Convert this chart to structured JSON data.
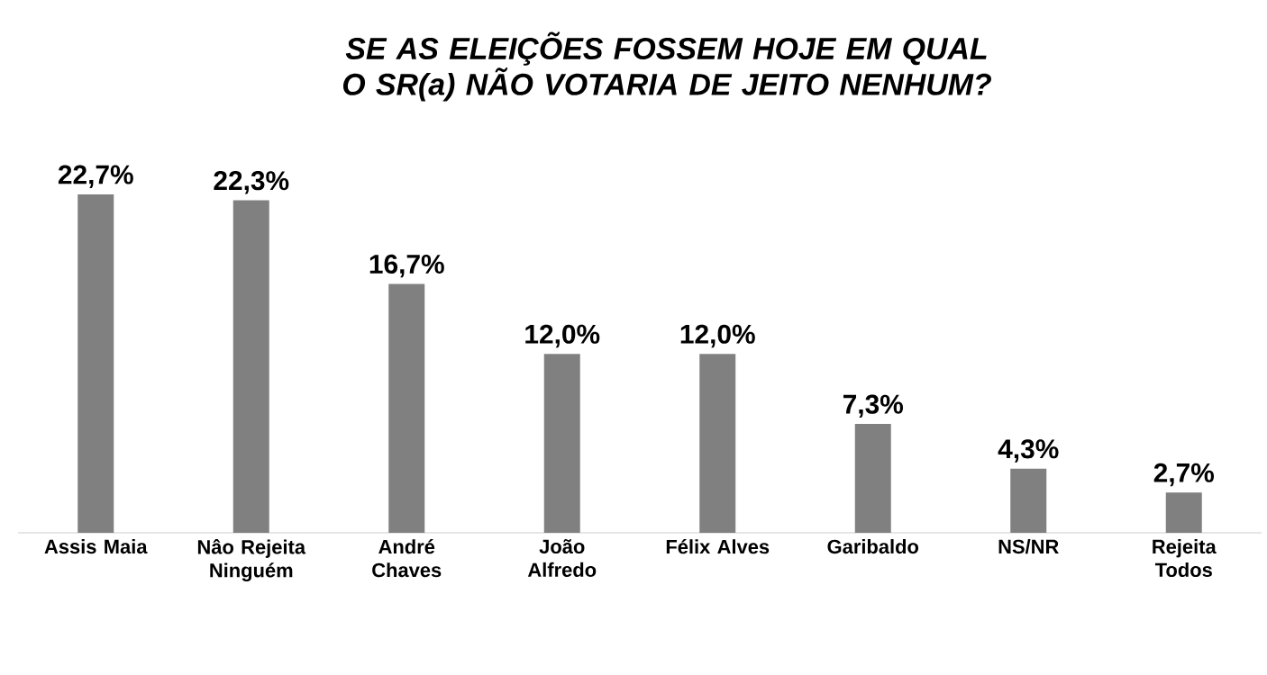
{
  "chart_data": {
    "type": "bar",
    "title": "SE AS ELEIÇÕES FOSSEM HOJE EM QUAL O SR(a) NÃO VOTARIA DE JEITO NENHUM?",
    "categories": [
      "Assis Maia",
      "Nâo Rejeita Ninguém",
      "André Chaves",
      "João Alfredo",
      "Félix Alves",
      "Garibaldo",
      "NS/NR",
      "Rejeita Todos"
    ],
    "values": [
      22.7,
      22.3,
      16.7,
      12.0,
      12.0,
      7.3,
      4.3,
      2.7
    ],
    "value_labels": [
      "22,7%",
      "22,3%",
      "16,7%",
      "12,0%",
      "12,0%",
      "7,3%",
      "4,3%",
      "2,7%"
    ],
    "color": "#808080"
  }
}
